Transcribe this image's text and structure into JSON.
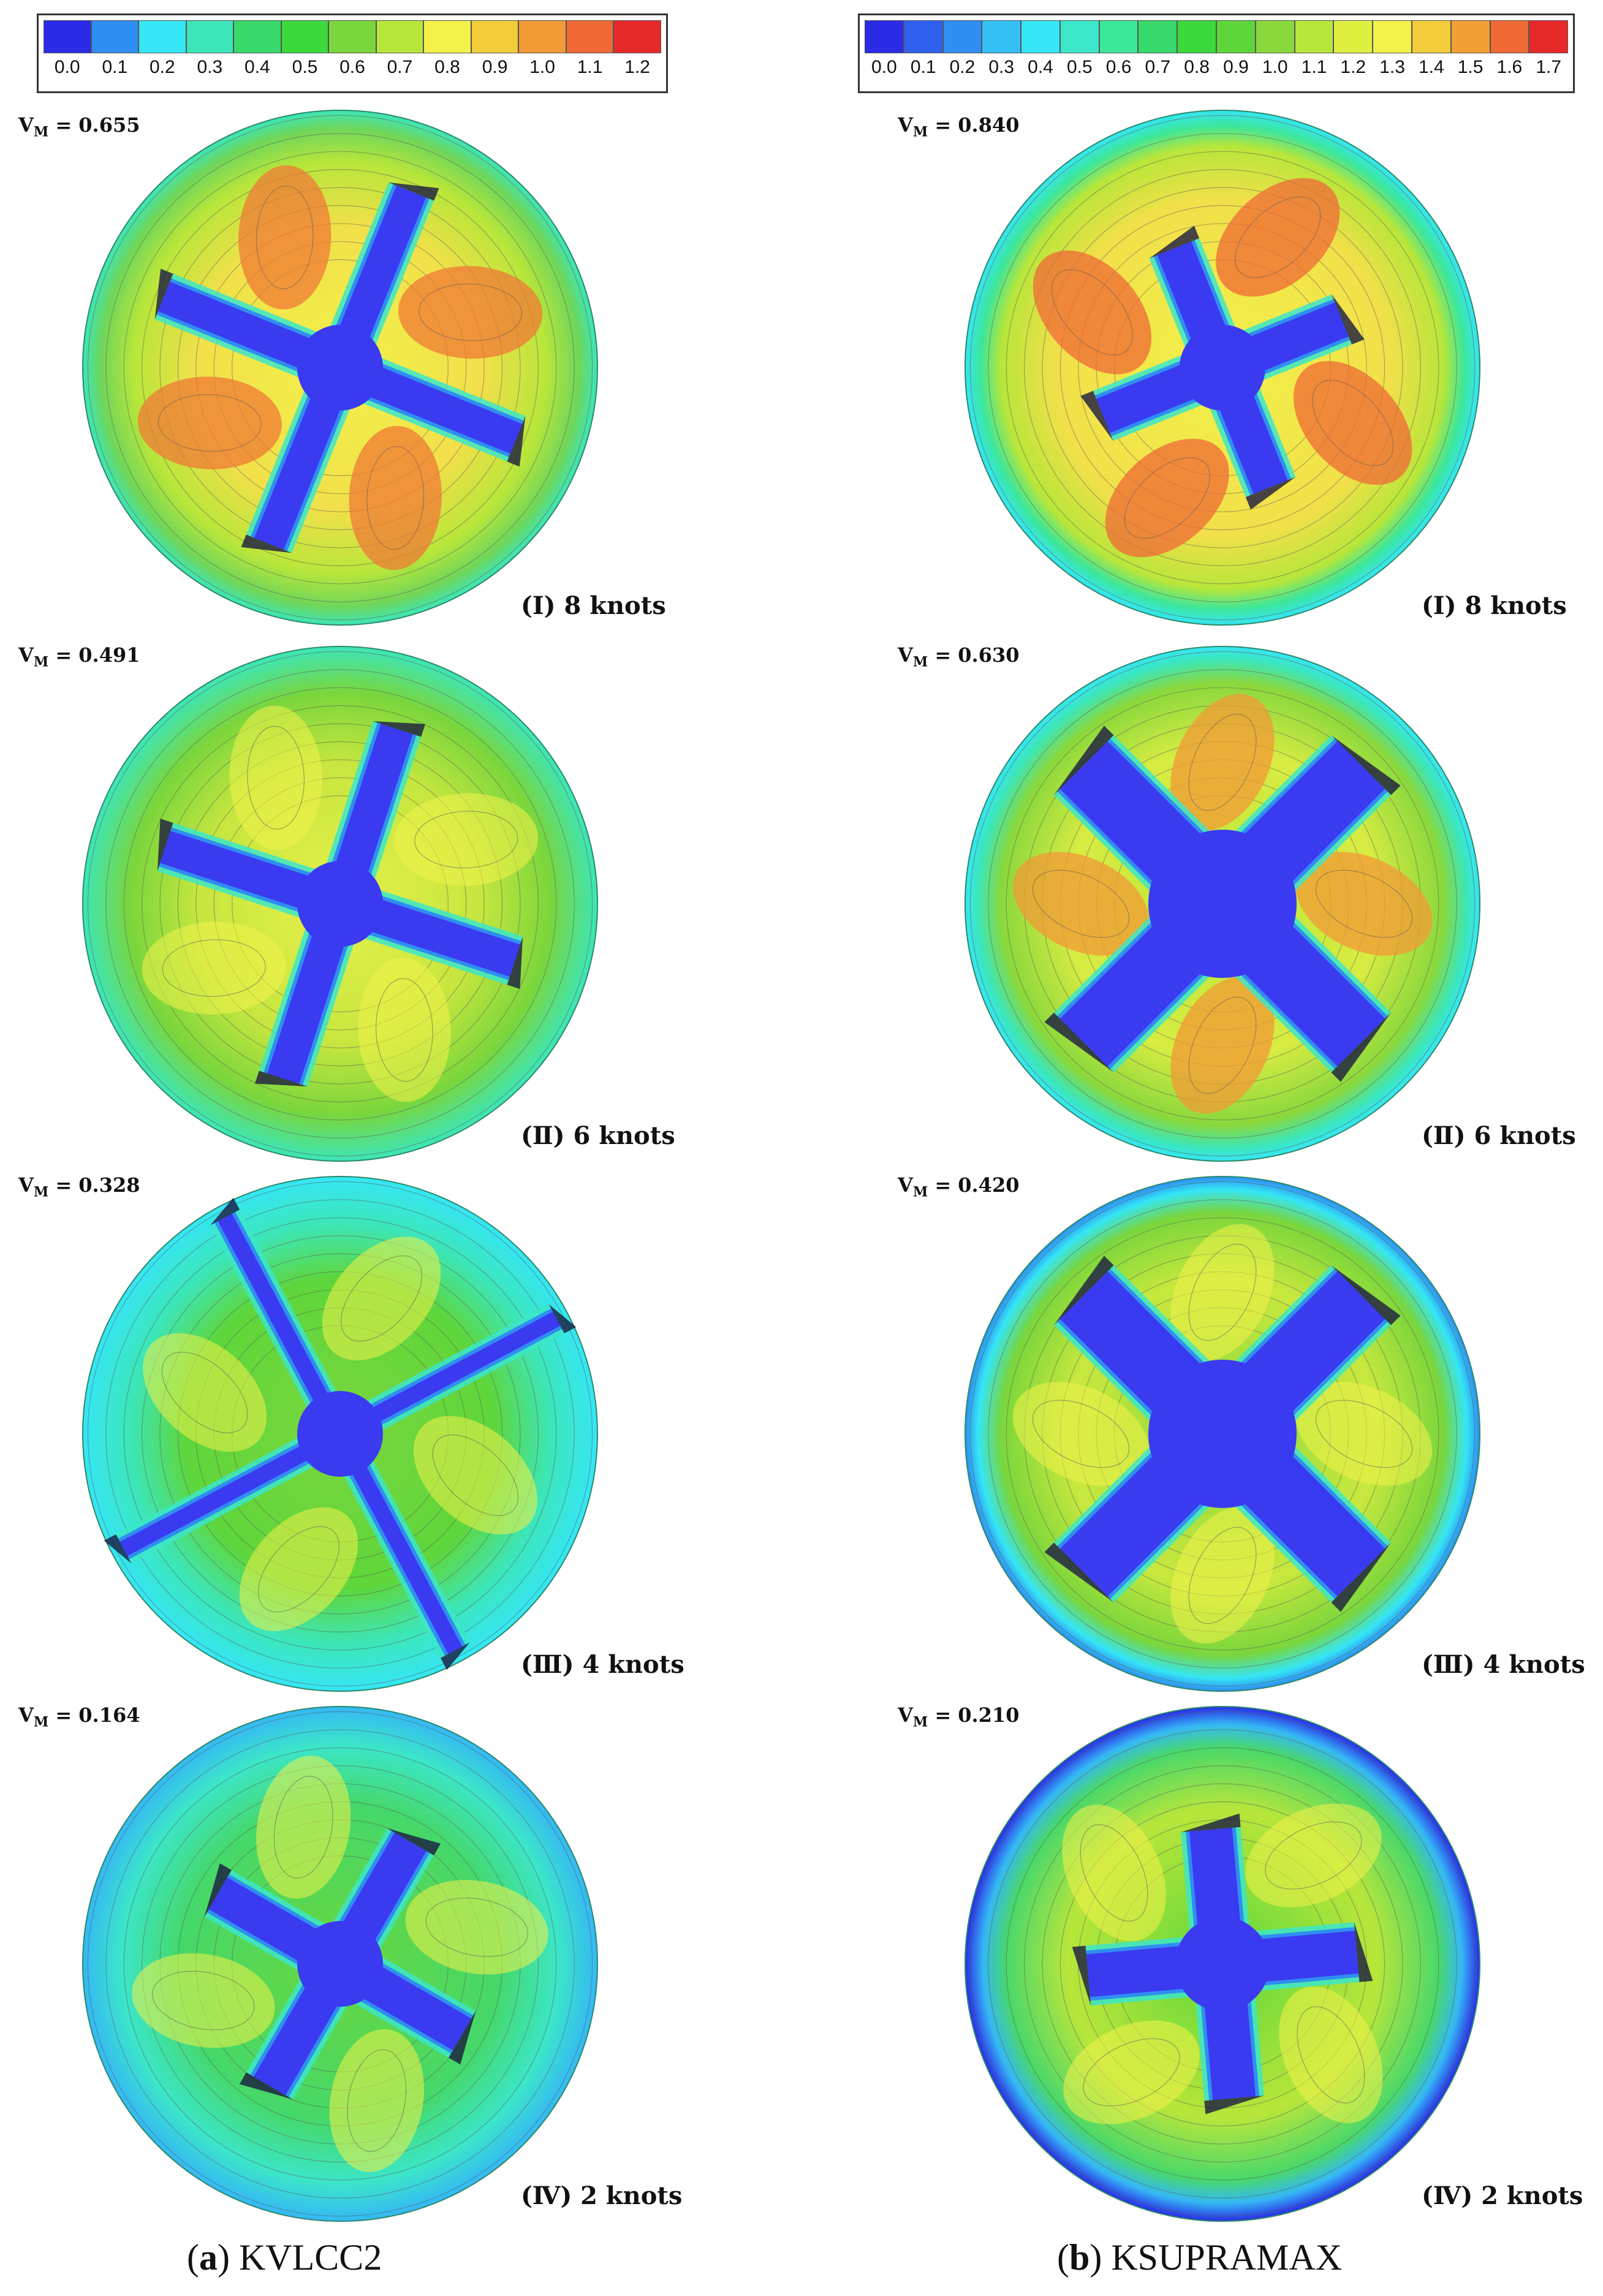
{
  "legends": [
    {
      "ticks": [
        "0.0",
        "0.1",
        "0.2",
        "0.3",
        "0.4",
        "0.5",
        "0.6",
        "0.7",
        "0.8",
        "0.9",
        "1.0",
        "1.1",
        "1.2"
      ],
      "colors": [
        "#2a2ce6",
        "#2f8ef2",
        "#35e6f5",
        "#3ce6b8",
        "#37d96b",
        "#3bd93b",
        "#7ad63c",
        "#b8e63a",
        "#f2f24a",
        "#f2cc3a",
        "#f29a35",
        "#ef6a35",
        "#e62a2a"
      ]
    },
    {
      "ticks": [
        "0.0",
        "0.1",
        "0.2",
        "0.3",
        "0.4",
        "0.5",
        "0.6",
        "0.7",
        "0.8",
        "0.9",
        "1.0",
        "1.1",
        "1.2",
        "1.3",
        "1.4",
        "1.5",
        "1.6",
        "1.7"
      ],
      "colors": [
        "#2a2ce6",
        "#2f60ee",
        "#2f8ef2",
        "#35c0f5",
        "#35e6f5",
        "#3ce6c8",
        "#3ce69a",
        "#37d96b",
        "#3bd93b",
        "#5ed63b",
        "#8ad83c",
        "#b8e63a",
        "#e0f040",
        "#f2f24a",
        "#f2cc3a",
        "#f2a035",
        "#ef6a35",
        "#e62a2a"
      ]
    }
  ],
  "panels": {
    "a": [
      {
        "vm": "0.655",
        "label": "(Ⅰ) 8 knots"
      },
      {
        "vm": "0.491",
        "label": "(Ⅱ) 6 knots"
      },
      {
        "vm": "0.328",
        "label": "(Ⅲ) 4 knots"
      },
      {
        "vm": "0.164",
        "label": "(Ⅳ) 2 knots"
      }
    ],
    "b": [
      {
        "vm": "0.840",
        "label": "(Ⅰ) 8 knots"
      },
      {
        "vm": "0.630",
        "label": "(Ⅱ) 6 knots"
      },
      {
        "vm": "0.420",
        "label": "(Ⅲ) 4 knots"
      },
      {
        "vm": "0.210",
        "label": "(Ⅳ) 2 knots"
      }
    ]
  },
  "vm_symbol": "V",
  "vm_subscript": "M",
  "vm_equals": " = ",
  "captions": {
    "a_letter": "a",
    "a_name": "KVLCC2",
    "b_letter": "b",
    "b_name": "KSUPRAMAX"
  }
}
